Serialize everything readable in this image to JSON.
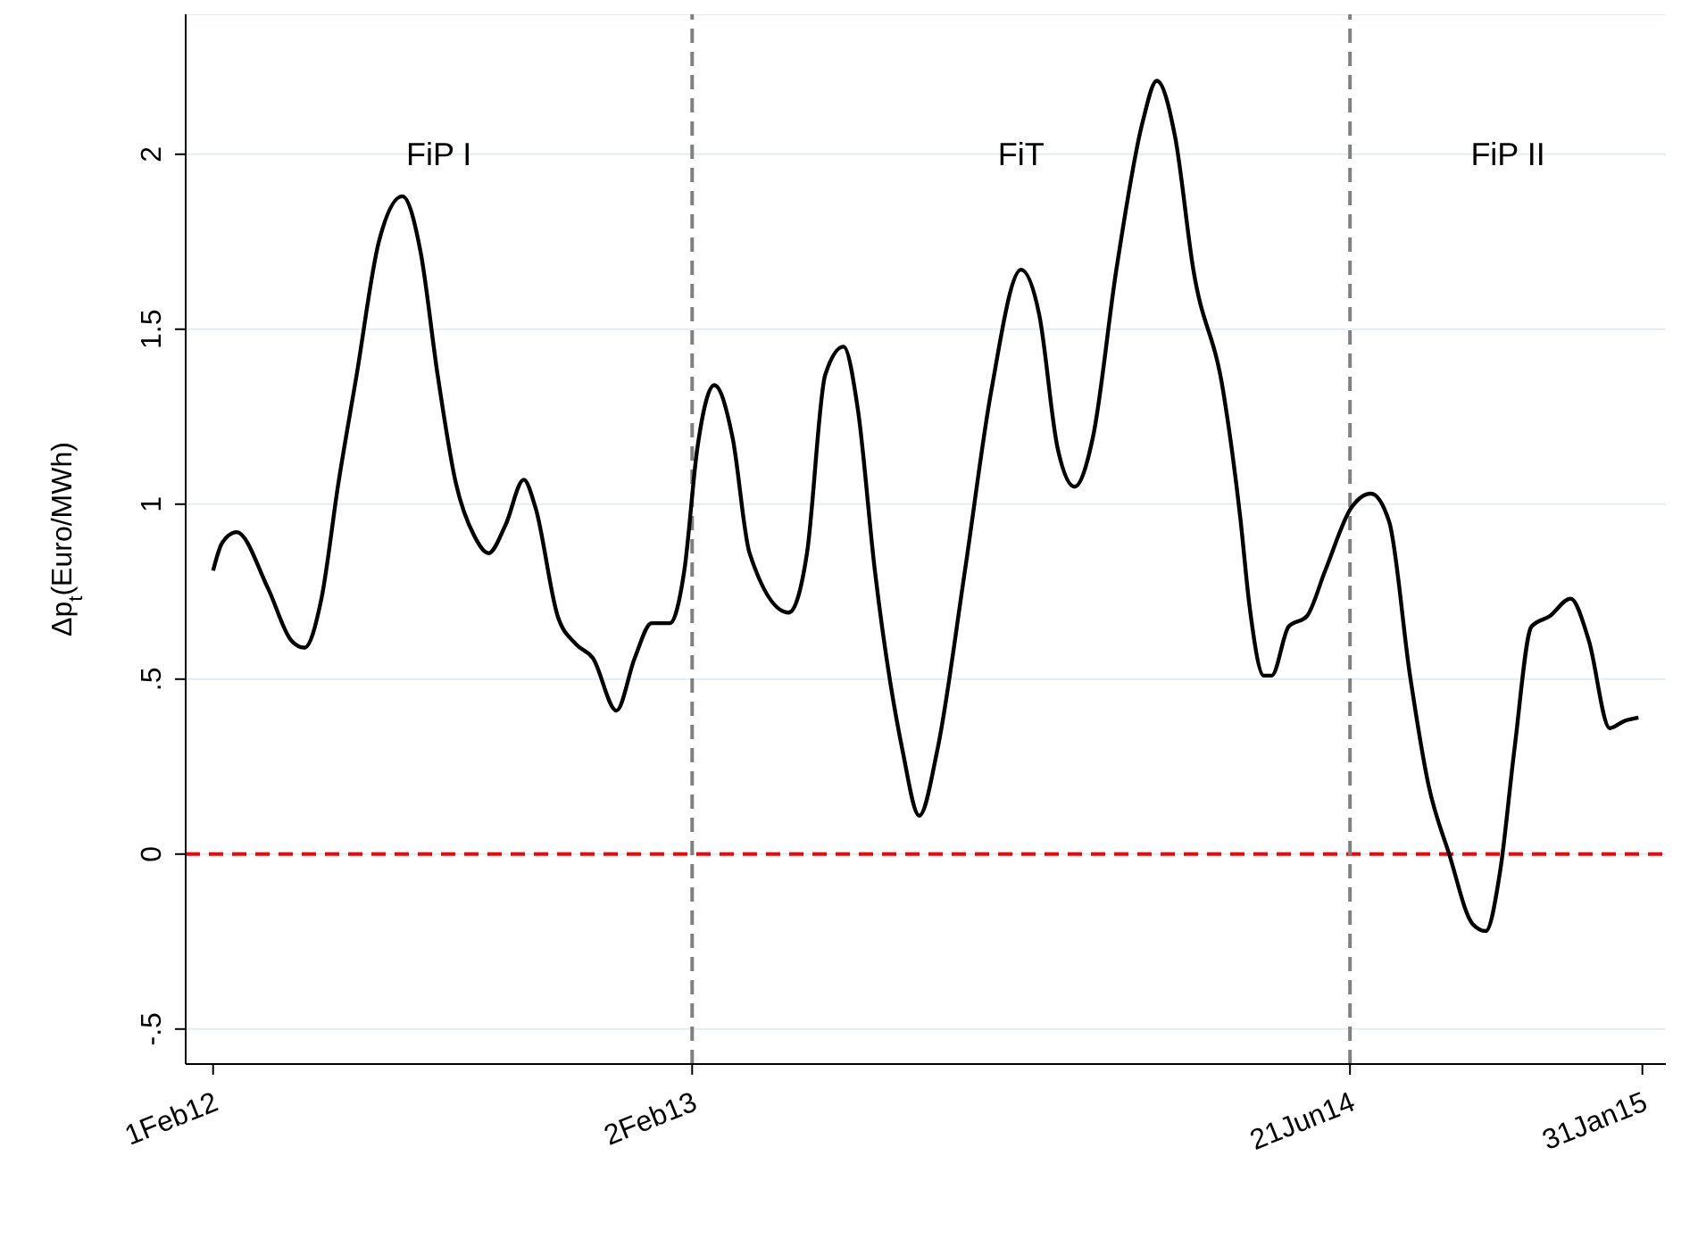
{
  "chart_data": {
    "type": "line",
    "ylabel": "Δp$_{t}$(Euro/MWh)",
    "x": [
      "2012-02-01",
      "2012-02-08",
      "2012-02-19",
      "2012-03-14",
      "2012-04-01",
      "2012-04-11",
      "2012-04-24",
      "2012-05-07",
      "2012-05-21",
      "2012-06-07",
      "2012-06-25",
      "2012-07-09",
      "2012-07-22",
      "2012-08-05",
      "2012-08-19",
      "2012-08-30",
      "2012-09-12",
      "2012-09-26",
      "2012-10-05",
      "2012-10-22",
      "2012-11-05",
      "2012-11-18",
      "2012-12-06",
      "2012-12-20",
      "2013-01-02",
      "2013-01-16",
      "2013-01-27",
      "2013-02-06",
      "2013-02-19",
      "2013-03-05",
      "2013-03-18",
      "2013-04-17",
      "2013-05-01",
      "2013-05-15",
      "2013-05-29",
      "2013-06-09",
      "2013-06-22",
      "2013-07-13",
      "2013-07-26",
      "2013-08-09",
      "2013-08-30",
      "2013-09-19",
      "2013-10-12",
      "2013-10-26",
      "2013-11-09",
      "2013-11-22",
      "2013-12-06",
      "2013-12-24",
      "2014-01-13",
      "2014-01-24",
      "2014-02-07",
      "2014-02-21",
      "2014-03-16",
      "2014-03-29",
      "2014-04-05",
      "2014-04-16",
      "2014-04-22",
      "2014-05-05",
      "2014-05-19",
      "2014-06-02",
      "2014-06-22",
      "2014-07-07",
      "2014-07-21",
      "2014-08-06",
      "2014-08-20",
      "2014-09-05",
      "2014-09-23",
      "2014-10-03",
      "2014-10-14",
      "2014-10-25",
      "2014-11-07",
      "2014-11-21",
      "2014-12-07",
      "2014-12-21",
      "2015-01-06",
      "2015-01-17",
      "2015-01-28"
    ],
    "series": [
      {
        "color": "#000000",
        "values": [
          0.81,
          0.89,
          0.92,
          0.76,
          0.61,
          0.59,
          0.73,
          1.06,
          1.37,
          1.75,
          1.88,
          1.72,
          1.37,
          1.06,
          0.91,
          0.86,
          0.94,
          1.07,
          0.99,
          0.68,
          0.6,
          0.56,
          0.41,
          0.56,
          0.66,
          0.66,
          0.81,
          1.16,
          1.34,
          1.19,
          0.86,
          0.69,
          0.86,
          1.37,
          1.45,
          1.27,
          0.81,
          0.3,
          0.11,
          0.3,
          0.81,
          1.32,
          1.67,
          1.54,
          1.16,
          1.05,
          1.19,
          1.67,
          2.09,
          2.21,
          2.05,
          1.67,
          1.32,
          0.96,
          0.71,
          0.51,
          0.51,
          0.65,
          0.68,
          0.81,
          0.99,
          1.03,
          0.95,
          0.51,
          0.2,
          0.0,
          -0.2,
          -0.22,
          -0.05,
          0.3,
          0.65,
          0.68,
          0.73,
          0.61,
          0.36,
          0.38,
          0.39
        ]
      }
    ],
    "xlim": [
      "2012-01-11",
      "2015-02-18"
    ],
    "xticks": [
      {
        "value": "2012-02-01",
        "label": "1Feb12"
      },
      {
        "value": "2013-02-02",
        "label": "2Feb13"
      },
      {
        "value": "2014-06-21",
        "label": "21Jun14"
      },
      {
        "value": "2015-01-31",
        "label": "31Jan15"
      }
    ],
    "ylim": [
      -0.6,
      2.4
    ],
    "yticks": [
      {
        "value": -0.5,
        "label": "-.5"
      },
      0,
      {
        "value": 0.5,
        "label": ".5"
      },
      1,
      1.5,
      2
    ],
    "grid": "y",
    "line_style": "solid",
    "ref_lines": [
      {
        "axis": "y",
        "value": 0,
        "color": "#ff0000",
        "line_style": "dashed"
      },
      {
        "axis": "x",
        "value": "2013-02-02",
        "color": "#808080",
        "line_style": "dashed"
      },
      {
        "axis": "x",
        "value": "2014-06-21",
        "color": "#808080",
        "line_style": "dashed"
      }
    ],
    "annotations": [
      "FiP I",
      "FiT",
      "FiP II"
    ]
  }
}
